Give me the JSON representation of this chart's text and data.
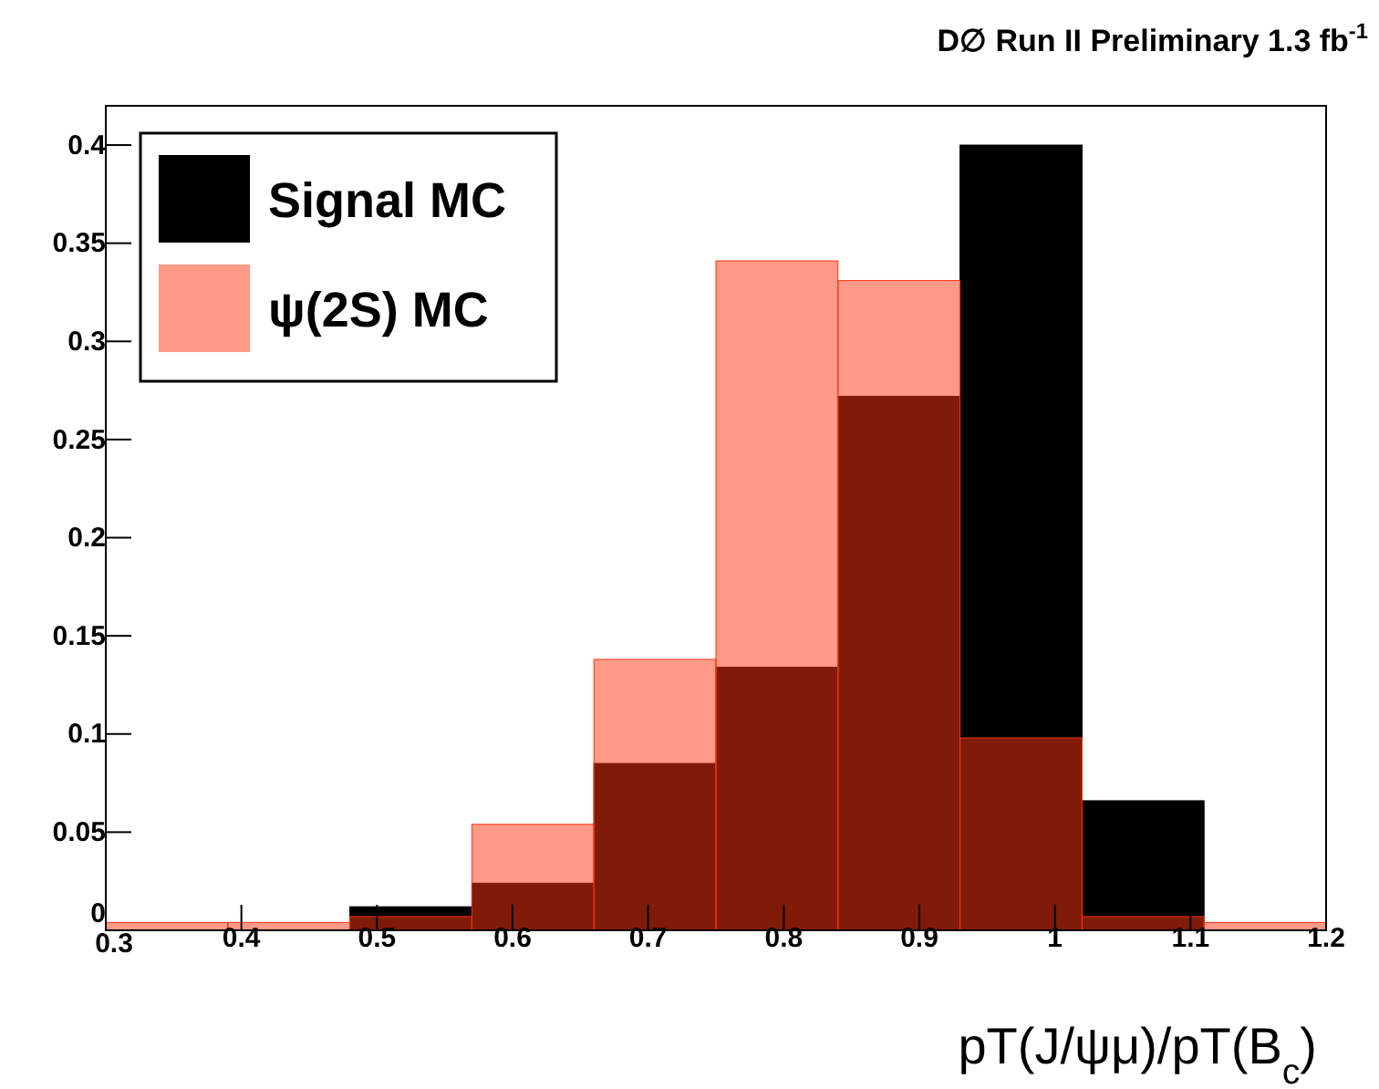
{
  "chart_data": {
    "type": "histogram",
    "title": "D∅ Run II Preliminary 1.3 fb$^{-1}$",
    "xlabel": "pT(J/ψμ)/pT(B$_{c}$)",
    "bins": [
      0.3,
      0.39,
      0.48,
      0.57,
      0.66,
      0.75,
      0.84,
      0.93,
      1.02,
      1.11,
      1.2
    ],
    "series": [
      {
        "name": "Signal MC",
        "color": "#000000",
        "values": [
          0,
          0,
          0.012,
          0.024,
          0.085,
          0.134,
          0.272,
          0.4,
          0.066,
          0
        ]
      },
      {
        "name": "ψ(2S) MC",
        "color": "#ff3311",
        "values": [
          0.004,
          0.004,
          0.007,
          0.054,
          0.138,
          0.341,
          0.331,
          0.098,
          0.007,
          0.004
        ]
      }
    ],
    "xlim": [
      0.3,
      1.2
    ],
    "xticks": [
      0.3,
      0.4,
      0.5,
      0.6,
      0.7,
      0.8,
      0.9,
      1,
      1.1,
      1.2
    ],
    "ylim": [
      0,
      0.42
    ],
    "yticks": [
      0,
      0.05,
      0.1,
      0.15,
      0.2,
      0.25,
      0.3,
      0.35,
      0.4
    ],
    "grid": false,
    "legend": "top left"
  }
}
